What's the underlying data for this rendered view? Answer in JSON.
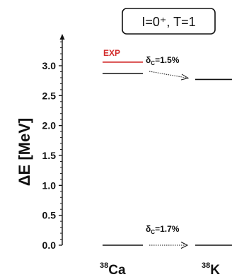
{
  "chart_data": {
    "type": "level-scheme",
    "quantum_numbers": "I=0⁺, T=1",
    "ylabel": "ΔE [MeV]",
    "ylim": [
      0.0,
      3.5
    ],
    "yticks": [
      "0.0",
      "0.5",
      "1.0",
      "1.5",
      "2.0",
      "2.5",
      "3.0"
    ],
    "ytick_values": [
      0.0,
      0.5,
      1.0,
      1.5,
      2.0,
      2.5,
      3.0
    ],
    "nuclei": [
      {
        "mass": "38",
        "symbol": "Ca"
      },
      {
        "mass": "38",
        "symbol": "K"
      }
    ],
    "levels": [
      {
        "nucleus": "Ca",
        "energy": 0.0
      },
      {
        "nucleus": "K",
        "energy": 0.0
      },
      {
        "nucleus": "Ca",
        "energy": 2.87
      },
      {
        "nucleus": "K",
        "energy": 2.77
      },
      {
        "nucleus": "Ca",
        "energy": 3.06,
        "label": "EXP",
        "color": "#d22b2b"
      }
    ],
    "annotations": [
      {
        "symbol": "δ",
        "sub": "C",
        "text": "=1.5%",
        "energy": 2.87
      },
      {
        "symbol": "δ",
        "sub": "C",
        "text": "=1.7%",
        "energy": 0.0
      }
    ]
  }
}
